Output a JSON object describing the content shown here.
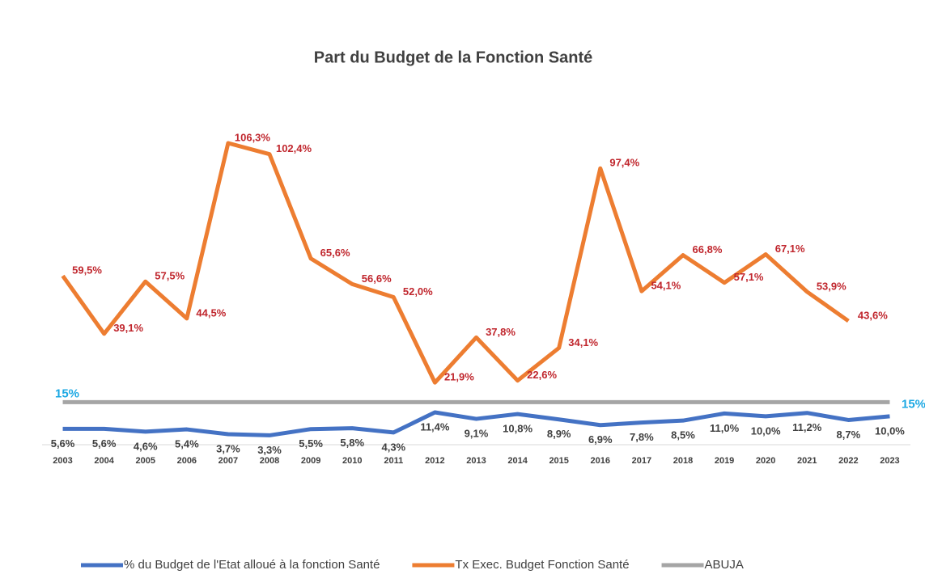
{
  "chart_data": {
    "type": "line",
    "title": "Part du Budget de la Fonction Santé",
    "categories": [
      "2003",
      "2004",
      "2005",
      "2006",
      "2007",
      "2008",
      "2009",
      "2010",
      "2011",
      "2012",
      "2013",
      "2014",
      "2015",
      "2016",
      "2017",
      "2018",
      "2019",
      "2020",
      "2021",
      "2022",
      "2023"
    ],
    "ylim": [
      0,
      110
    ],
    "series": [
      {
        "name": "% du Budget de l'Etat alloué à la fonction Santé",
        "color": "#4472c4",
        "values": [
          5.6,
          5.6,
          4.6,
          5.4,
          3.7,
          3.3,
          5.5,
          5.8,
          4.3,
          11.4,
          9.1,
          10.8,
          8.9,
          6.9,
          7.8,
          8.5,
          11.0,
          10.0,
          11.2,
          8.7,
          10.0
        ],
        "value_labels": [
          "5,6%",
          "5,6%",
          "4,6%",
          "5,4%",
          "3,7%",
          "3,3%",
          "5,5%",
          "5,8%",
          "4,3%",
          "11,4%",
          "9,1%",
          "10,8%",
          "8,9%",
          "6,9%",
          "7,8%",
          "8,5%",
          "11,0%",
          "10,0%",
          "11,2%",
          "8,7%",
          "10,0%"
        ]
      },
      {
        "name": "Tx Exec. Budget Fonction Santé",
        "color": "#ed7d31",
        "values": [
          59.5,
          39.1,
          57.5,
          44.5,
          106.3,
          102.4,
          65.6,
          56.6,
          52.0,
          21.9,
          37.8,
          22.6,
          34.1,
          97.4,
          54.1,
          66.8,
          57.1,
          67.1,
          53.9,
          43.6,
          null
        ],
        "value_labels": [
          "59,5%",
          "39,1%",
          "57,5%",
          "44,5%",
          "106,3%",
          "102,4%",
          "65,6%",
          "56,6%",
          "52,0%",
          "21,9%",
          "37,8%",
          "22,6%",
          "34,1%",
          "97,4%",
          "54,1%",
          "66,8%",
          "57,1%",
          "67,1%",
          "53,9%",
          "43,6%",
          null
        ]
      },
      {
        "name": "ABUJA",
        "color": "#a5a5a5",
        "values": [
          15,
          15,
          15,
          15,
          15,
          15,
          15,
          15,
          15,
          15,
          15,
          15,
          15,
          15,
          15,
          15,
          15,
          15,
          15,
          15,
          15
        ],
        "label": "15%"
      }
    ]
  }
}
